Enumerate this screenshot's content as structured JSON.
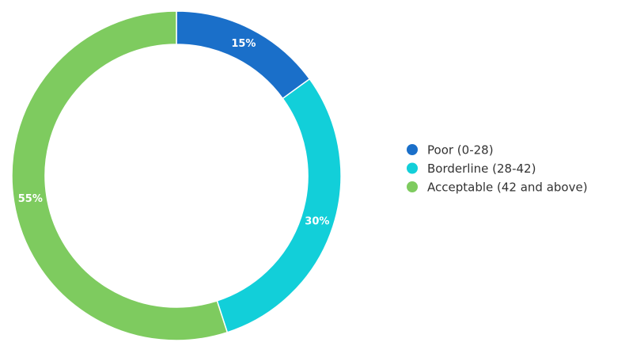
{
  "chart_data": {
    "type": "donut",
    "categories": [
      "Poor (0-28)",
      "Borderline (28-42)",
      "Acceptable (42 and above)"
    ],
    "values": [
      15,
      30,
      55
    ],
    "value_labels": [
      "15%",
      "30%",
      "55%"
    ],
    "colors": [
      "#1a6fc9",
      "#12cfd9",
      "#7ecb5f"
    ],
    "legend": "right"
  }
}
